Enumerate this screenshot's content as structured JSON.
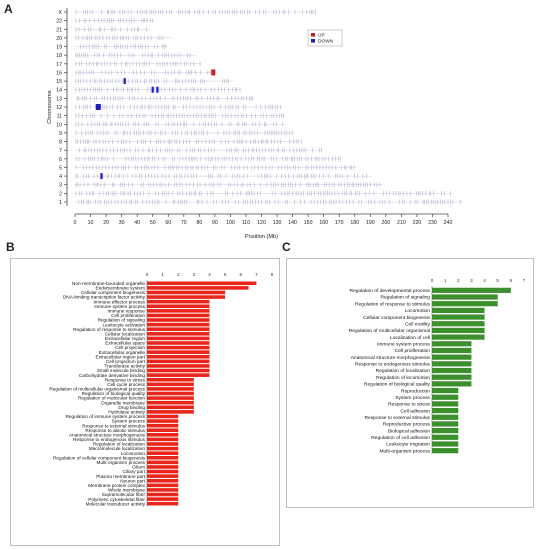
{
  "panels": {
    "a": "A",
    "b": "B",
    "c": "C"
  },
  "colors": {
    "up": "#cc1f1f",
    "down": "#1f1fbf",
    "tick": "#8a8ab4",
    "red_bar": "#e8261c",
    "green_bar": "#3b8f2c"
  },
  "chart_data": [
    {
      "type": "scatter",
      "title": "",
      "xlabel": "Position (Mb)",
      "ylabel": "Chromosome",
      "xlim": [
        0,
        240
      ],
      "xticks": [
        0,
        10,
        20,
        30,
        40,
        50,
        60,
        70,
        80,
        90,
        100,
        110,
        120,
        130,
        140,
        150,
        160,
        170,
        180,
        190,
        200,
        210,
        220,
        230,
        240
      ],
      "legend": {
        "position": "top-right",
        "entries": [
          {
            "name": "UP",
            "color": "#cc1f1f"
          },
          {
            "name": "DOWN",
            "color": "#1f1fbf"
          }
        ]
      },
      "chromosomes": [
        {
          "label": "X",
          "length": 155
        },
        {
          "label": "22",
          "length": 51
        },
        {
          "label": "21",
          "length": 48
        },
        {
          "label": "20",
          "length": 63
        },
        {
          "label": "19",
          "length": 59
        },
        {
          "label": "18",
          "length": 78
        },
        {
          "label": "17",
          "length": 81
        },
        {
          "label": "16",
          "length": 90
        },
        {
          "label": "15",
          "length": 102
        },
        {
          "label": "14",
          "length": 107
        },
        {
          "label": "13",
          "length": 115
        },
        {
          "label": "12",
          "length": 133
        },
        {
          "label": "11",
          "length": 135
        },
        {
          "label": "10",
          "length": 135
        },
        {
          "label": "9",
          "length": 141
        },
        {
          "label": "8",
          "length": 146
        },
        {
          "label": "7",
          "length": 159
        },
        {
          "label": "6",
          "length": 171
        },
        {
          "label": "5",
          "length": 181
        },
        {
          "label": "4",
          "length": 191
        },
        {
          "label": "3",
          "length": 198
        },
        {
          "label": "2",
          "length": 242
        },
        {
          "label": "1",
          "length": 249
        }
      ],
      "markers": [
        {
          "chromosome": "16",
          "position": 89,
          "type": "UP"
        },
        {
          "chromosome": "15",
          "position": 32,
          "type": "DOWN"
        },
        {
          "chromosome": "14",
          "position": 50,
          "type": "DOWN"
        },
        {
          "chromosome": "14",
          "position": 53,
          "type": "DOWN"
        },
        {
          "chromosome": "12",
          "position": 15,
          "type": "DOWN"
        },
        {
          "chromosome": "4",
          "position": 17,
          "type": "DOWN"
        }
      ]
    },
    {
      "type": "bar",
      "orientation": "horizontal",
      "xlim": [
        0,
        8
      ],
      "xticks": [
        0,
        1,
        2,
        3,
        4,
        5,
        6,
        7,
        8
      ],
      "categories": [
        "Non-membrane-bounded organelle",
        "Endomembrane system",
        "Cellular component biogenesis",
        "DNA-binding transcription factor activity",
        "Immune effector process",
        "Immune system process",
        "Immune response",
        "Cell proliferation",
        "Regulation of signaling",
        "Leukocyte activation",
        "Regulation of response to stimulus",
        "Cellular localization",
        "Extracellular region",
        "Extracellular space",
        "Cell projection",
        "Extracellular organelle",
        "Extracellular region part",
        "Cell projection part",
        "Transferase activity",
        "Small molecule binding",
        "Carbohydrate derivative binding",
        "Response to stress",
        "Cell cycle process",
        "Regulation of multicellular organismal process",
        "Regulation of biological quality",
        "Regulation of molecular function",
        "Organelle membrane",
        "Drug binding",
        "Hydrolase activity",
        "Regulation of immune system process",
        "System process",
        "Response to external stimulus",
        "Response to abiotic stimulus",
        "Anatomical structure morphogenesis",
        "Response to endogenous stimulus",
        "Regulation of localization",
        "Macromolecule localization",
        "Locomotion",
        "Regulation of cellular component biogenesis",
        "Multi-organism process",
        "Cilium",
        "Ciliary part",
        "Plasma membrane part",
        "Neuron part",
        "Membrane protein complex",
        "Whole membrane",
        "Supramolecular fiber",
        "Polymeric cytoskeletal fiber",
        "Molecular transducer activity"
      ],
      "values": [
        7,
        6.5,
        5,
        5,
        4,
        4,
        4,
        4,
        4,
        4,
        4,
        4,
        4,
        4,
        4,
        4,
        4,
        4,
        4,
        4,
        4,
        3,
        3,
        3,
        3,
        3,
        3,
        3,
        3,
        2,
        2,
        2,
        2,
        2,
        2,
        2,
        2,
        2,
        2,
        2,
        2,
        2,
        2,
        2,
        2,
        2,
        2,
        2,
        2
      ]
    },
    {
      "type": "bar",
      "orientation": "horizontal",
      "xlim": [
        0,
        7
      ],
      "xticks": [
        0,
        1,
        2,
        3,
        4,
        5,
        6,
        7
      ],
      "categories": [
        "Regulation of developmental process",
        "Regulation of signaling",
        "Regulation of response to stimulus",
        "Locomotion",
        "Cellular component biogenesis",
        "Cell motility",
        "Regulation of multicellular organismal",
        "Localization of cell",
        "Immune system process",
        "Cell proliferation",
        "Anatomical structure morphogenesis",
        "Response to endogenous stimulus",
        "Regulation of localization",
        "Regulation of locomotion",
        "Regulation of biological quality",
        "Reproduction",
        "System process",
        "Response to stress",
        "Cell adhesion",
        "Response to external stimulus",
        "Reproductive process",
        "Biological adhesion",
        "Regulation of cell adhesion",
        "Leukocyte migration",
        "Multi-organism process"
      ],
      "values": [
        6,
        5,
        5,
        4,
        4,
        4,
        4,
        4,
        3,
        3,
        3,
        3,
        3,
        3,
        3,
        2,
        2,
        2,
        2,
        2,
        2,
        2,
        2,
        2,
        2
      ]
    }
  ]
}
